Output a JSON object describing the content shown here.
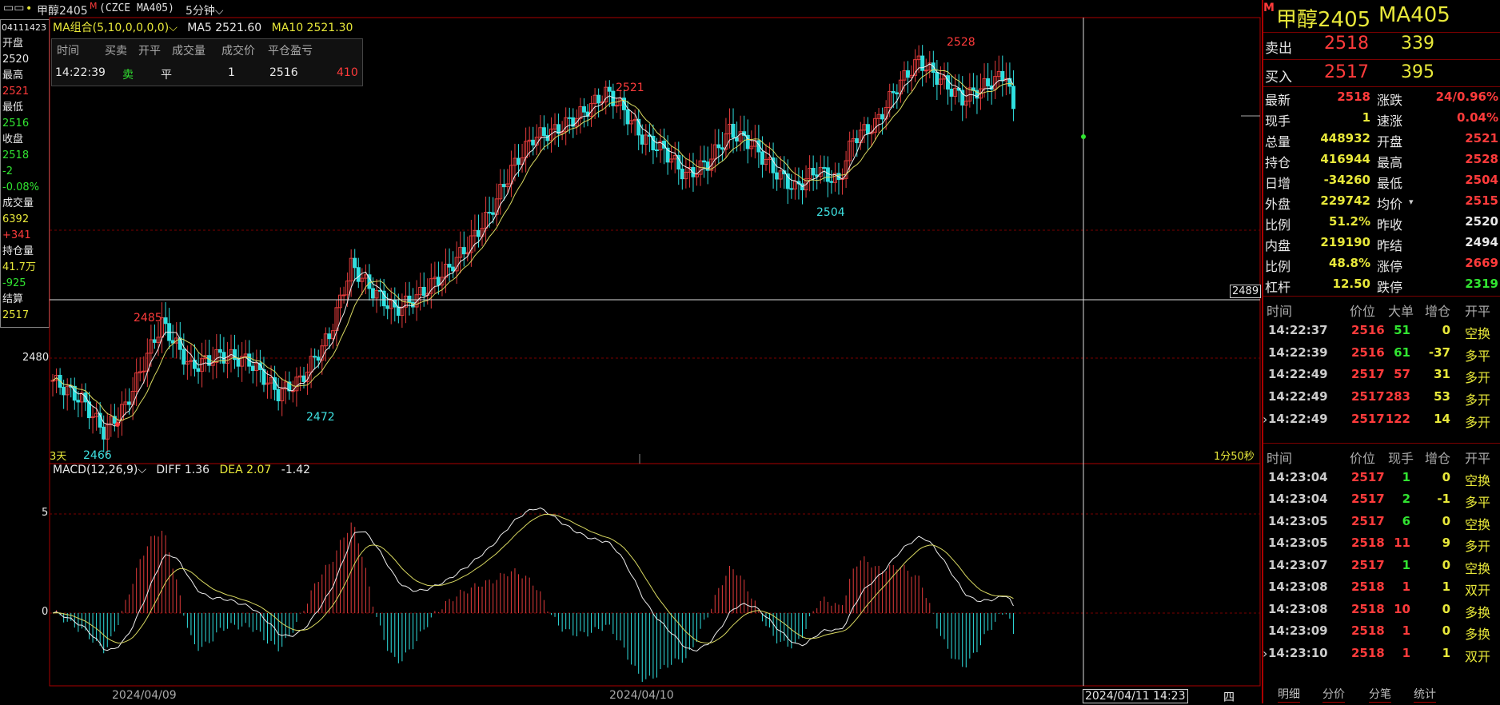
{
  "topbar": {
    "title": "甲醇2405",
    "mark": "M",
    "code": "(CZCE MA405)",
    "period": "5分钟",
    "ma_label": "MA组合(5,10,0,0,0,0)",
    "ma5": "MA5 2521.60",
    "ma10": "MA10 2521.30"
  },
  "leftinfo": {
    "date": "04111423",
    "items": [
      {
        "label": "开盘",
        "value": "2520",
        "color": "white"
      },
      {
        "label": "最高",
        "value": "2521",
        "color": "red"
      },
      {
        "label": "最低",
        "value": "2516",
        "color": "green"
      },
      {
        "label": "收盘",
        "value": "2518",
        "color": "green"
      },
      {
        "label": "",
        "value": "-2",
        "color": "green"
      },
      {
        "label": "",
        "value": "-0.08%",
        "color": "green"
      },
      {
        "label": "成交量",
        "value": "6392",
        "color": "yellow"
      },
      {
        "label": "",
        "value": "+341",
        "color": "red"
      },
      {
        "label": "持仓量",
        "value": "41.7万",
        "color": "yellow"
      },
      {
        "label": "",
        "value": "-925",
        "color": "green"
      },
      {
        "label": "结算",
        "value": "2517",
        "color": "yellow"
      }
    ]
  },
  "tradebox": {
    "headers": [
      "时间",
      "买卖",
      "开平",
      "成交量",
      "成交价",
      "平仓盈亏"
    ],
    "row": [
      "14:22:39",
      "卖",
      "平",
      "1",
      "2516",
      "410"
    ]
  },
  "chart_labels": {
    "peak_2528": "2528",
    "peak_2521": "2521",
    "peak_2485": "2485",
    "low_2504": "2504",
    "low_2472": "2472",
    "low_2466": "2466",
    "tick_2480": "2480",
    "crosshair_price": "2489",
    "days": "3天",
    "countdown": "1分50秒"
  },
  "macd": {
    "label": "MACD(12,26,9)",
    "diff": "DIFF 1.36",
    "dea": "DEA 2.07",
    "macd": "-1.42",
    "tick_5": "5",
    "tick_0": "0"
  },
  "bottombar": {
    "date1": "2024/04/09",
    "date2": "2024/04/10",
    "crosshair_time": "2024/04/11 14:23",
    "weekday": "四"
  },
  "rightpanel": {
    "title_mark": "M",
    "title": "甲醇2405",
    "code": "MA405",
    "sell": {
      "label": "卖出",
      "price": "2518",
      "vol": "339"
    },
    "buy": {
      "label": "买入",
      "price": "2517",
      "vol": "395"
    },
    "stats": [
      {
        "l": "最新",
        "v": "2518",
        "vc": "red",
        "l2": "涨跌",
        "v2": "24/0.96%",
        "v2c": "red"
      },
      {
        "l": "现手",
        "v": "1",
        "vc": "yellow",
        "l2": "速涨",
        "v2": "0.04%",
        "v2c": "red"
      },
      {
        "l": "总量",
        "v": "448932",
        "vc": "yellow",
        "l2": "开盘",
        "v2": "2521",
        "v2c": "red"
      },
      {
        "l": "持仓",
        "v": "416944",
        "vc": "yellow",
        "l2": "最高",
        "v2": "2528",
        "v2c": "red"
      },
      {
        "l": "日增",
        "v": "-34260",
        "vc": "yellow",
        "l2": "最低",
        "v2": "2504",
        "v2c": "red"
      },
      {
        "l": "外盘",
        "v": "229742",
        "vc": "yellow",
        "l2": "均价",
        "v2": "2515",
        "v2c": "red"
      },
      {
        "l": "比例",
        "v": "51.2%",
        "vc": "yellow",
        "l2": "昨收",
        "v2": "2520",
        "v2c": "white"
      },
      {
        "l": "内盘",
        "v": "219190",
        "vc": "yellow",
        "l2": "昨结",
        "v2": "2494",
        "v2c": "white"
      },
      {
        "l": "比例",
        "v": "48.8%",
        "vc": "yellow",
        "l2": "涨停",
        "v2": "2669",
        "v2c": "red"
      },
      {
        "l": "杠杆",
        "v": "12.50",
        "vc": "yellow",
        "l2": "跌停",
        "v2": "2319",
        "v2c": "green"
      }
    ],
    "big_headers": [
      "时间",
      "价位",
      "大单",
      "增仓",
      "开平"
    ],
    "big_rows": [
      {
        "t": "14:22:37",
        "p": "2516",
        "v": "51",
        "vc": "green",
        "z": "0",
        "zc": "yellow",
        "k": "空换"
      },
      {
        "t": "14:22:39",
        "p": "2516",
        "v": "61",
        "vc": "green",
        "z": "-37",
        "zc": "yellow",
        "k": "多平"
      },
      {
        "t": "14:22:49",
        "p": "2517",
        "v": "57",
        "vc": "red",
        "z": "31",
        "zc": "yellow",
        "k": "多开"
      },
      {
        "t": "14:22:49",
        "p": "2517",
        "v": "283",
        "vc": "red",
        "z": "53",
        "zc": "yellow",
        "k": "多开"
      },
      {
        "t": "14:22:49",
        "p": "2517",
        "v": "122",
        "vc": "red",
        "z": "14",
        "zc": "yellow",
        "k": "多开"
      }
    ],
    "tick_headers": [
      "时间",
      "价位",
      "现手",
      "增仓",
      "开平"
    ],
    "tick_rows": [
      {
        "t": "14:23:04",
        "p": "2517",
        "v": "1",
        "vc": "green",
        "z": "0",
        "k": "空换"
      },
      {
        "t": "14:23:04",
        "p": "2517",
        "v": "2",
        "vc": "green",
        "z": "-1",
        "k": "多平"
      },
      {
        "t": "14:23:05",
        "p": "2517",
        "v": "6",
        "vc": "green",
        "z": "0",
        "k": "空换"
      },
      {
        "t": "14:23:05",
        "p": "2518",
        "v": "11",
        "vc": "red",
        "z": "9",
        "k": "多开"
      },
      {
        "t": "14:23:07",
        "p": "2517",
        "v": "1",
        "vc": "green",
        "z": "0",
        "k": "空换"
      },
      {
        "t": "14:23:08",
        "p": "2518",
        "v": "1",
        "vc": "red",
        "z": "1",
        "k": "双开"
      },
      {
        "t": "14:23:08",
        "p": "2518",
        "v": "10",
        "vc": "red",
        "z": "0",
        "k": "多换"
      },
      {
        "t": "14:23:09",
        "p": "2518",
        "v": "1",
        "vc": "red",
        "z": "0",
        "k": "多换"
      },
      {
        "t": "14:23:10",
        "p": "2518",
        "v": "1",
        "vc": "red",
        "z": "1",
        "k": "双开"
      }
    ],
    "tabs": [
      "明细",
      "分价",
      "分笔",
      "统计"
    ]
  }
}
